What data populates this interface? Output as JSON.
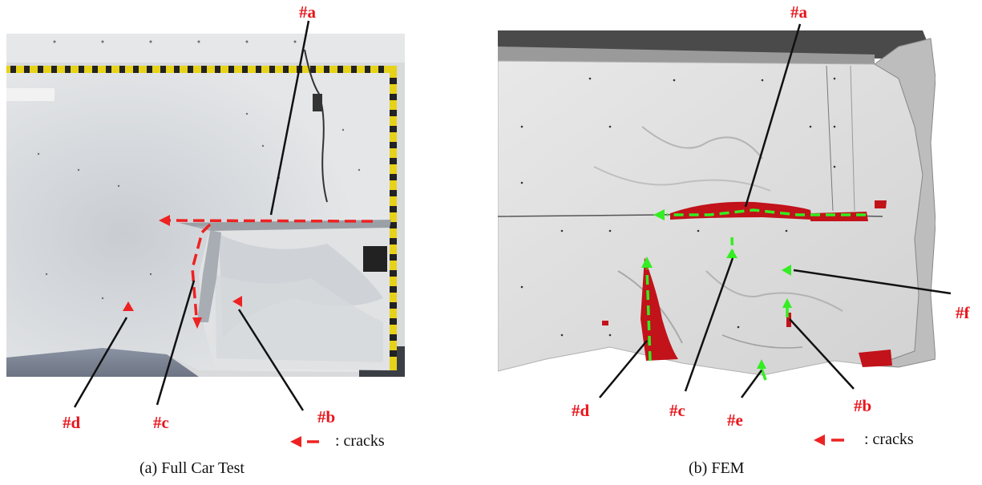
{
  "panels": [
    {
      "caption": "(a) Full Car Test",
      "labels": {
        "a": "#a",
        "b": "#b",
        "c": "#c",
        "d": "#d"
      },
      "legend_text": ": cracks"
    },
    {
      "caption": "(b) FEM",
      "labels": {
        "a": "#a",
        "b": "#b",
        "c": "#c",
        "d": "#d",
        "e": "#e",
        "f": "#f"
      },
      "legend_text": ": cracks"
    }
  ],
  "colors": {
    "label_red": "#e8141b",
    "crack_red": "#ee2222",
    "crack_green": "#33ee22",
    "fem_damage": "#c2121a"
  }
}
